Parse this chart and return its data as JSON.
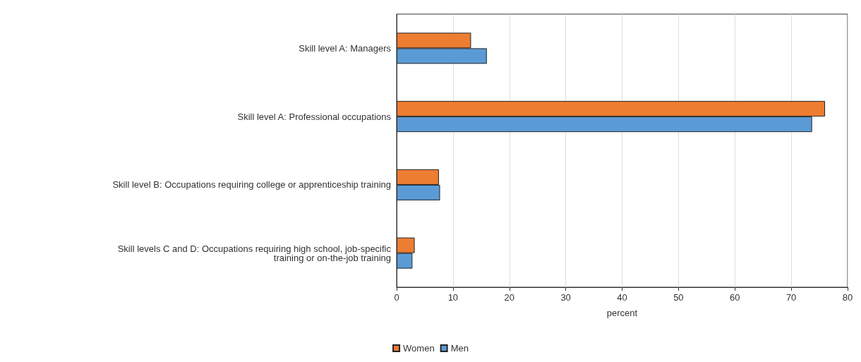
{
  "chart_data": {
    "type": "bar",
    "orientation": "horizontal",
    "xlabel": "percent",
    "categories": [
      "Skill level A: Managers",
      "Skill level A: Professional occupations",
      "Skill level B: Occupations requiring college or apprenticeship training",
      "Skill levels C and D: Occupations requiring high school, job-specific\ntraining or on-the-job training"
    ],
    "series": [
      {
        "name": "Women",
        "color": "#ed7d31",
        "values": [
          13.2,
          76.0,
          7.5,
          3.2
        ]
      },
      {
        "name": "Men",
        "color": "#5b9bd5",
        "values": [
          16.0,
          73.7,
          7.7,
          2.8
        ]
      }
    ],
    "xlim": [
      0,
      80
    ],
    "xticks": [
      0,
      10,
      20,
      30,
      40,
      50,
      60,
      70,
      80
    ],
    "grid": "x",
    "legend": "bottom"
  }
}
